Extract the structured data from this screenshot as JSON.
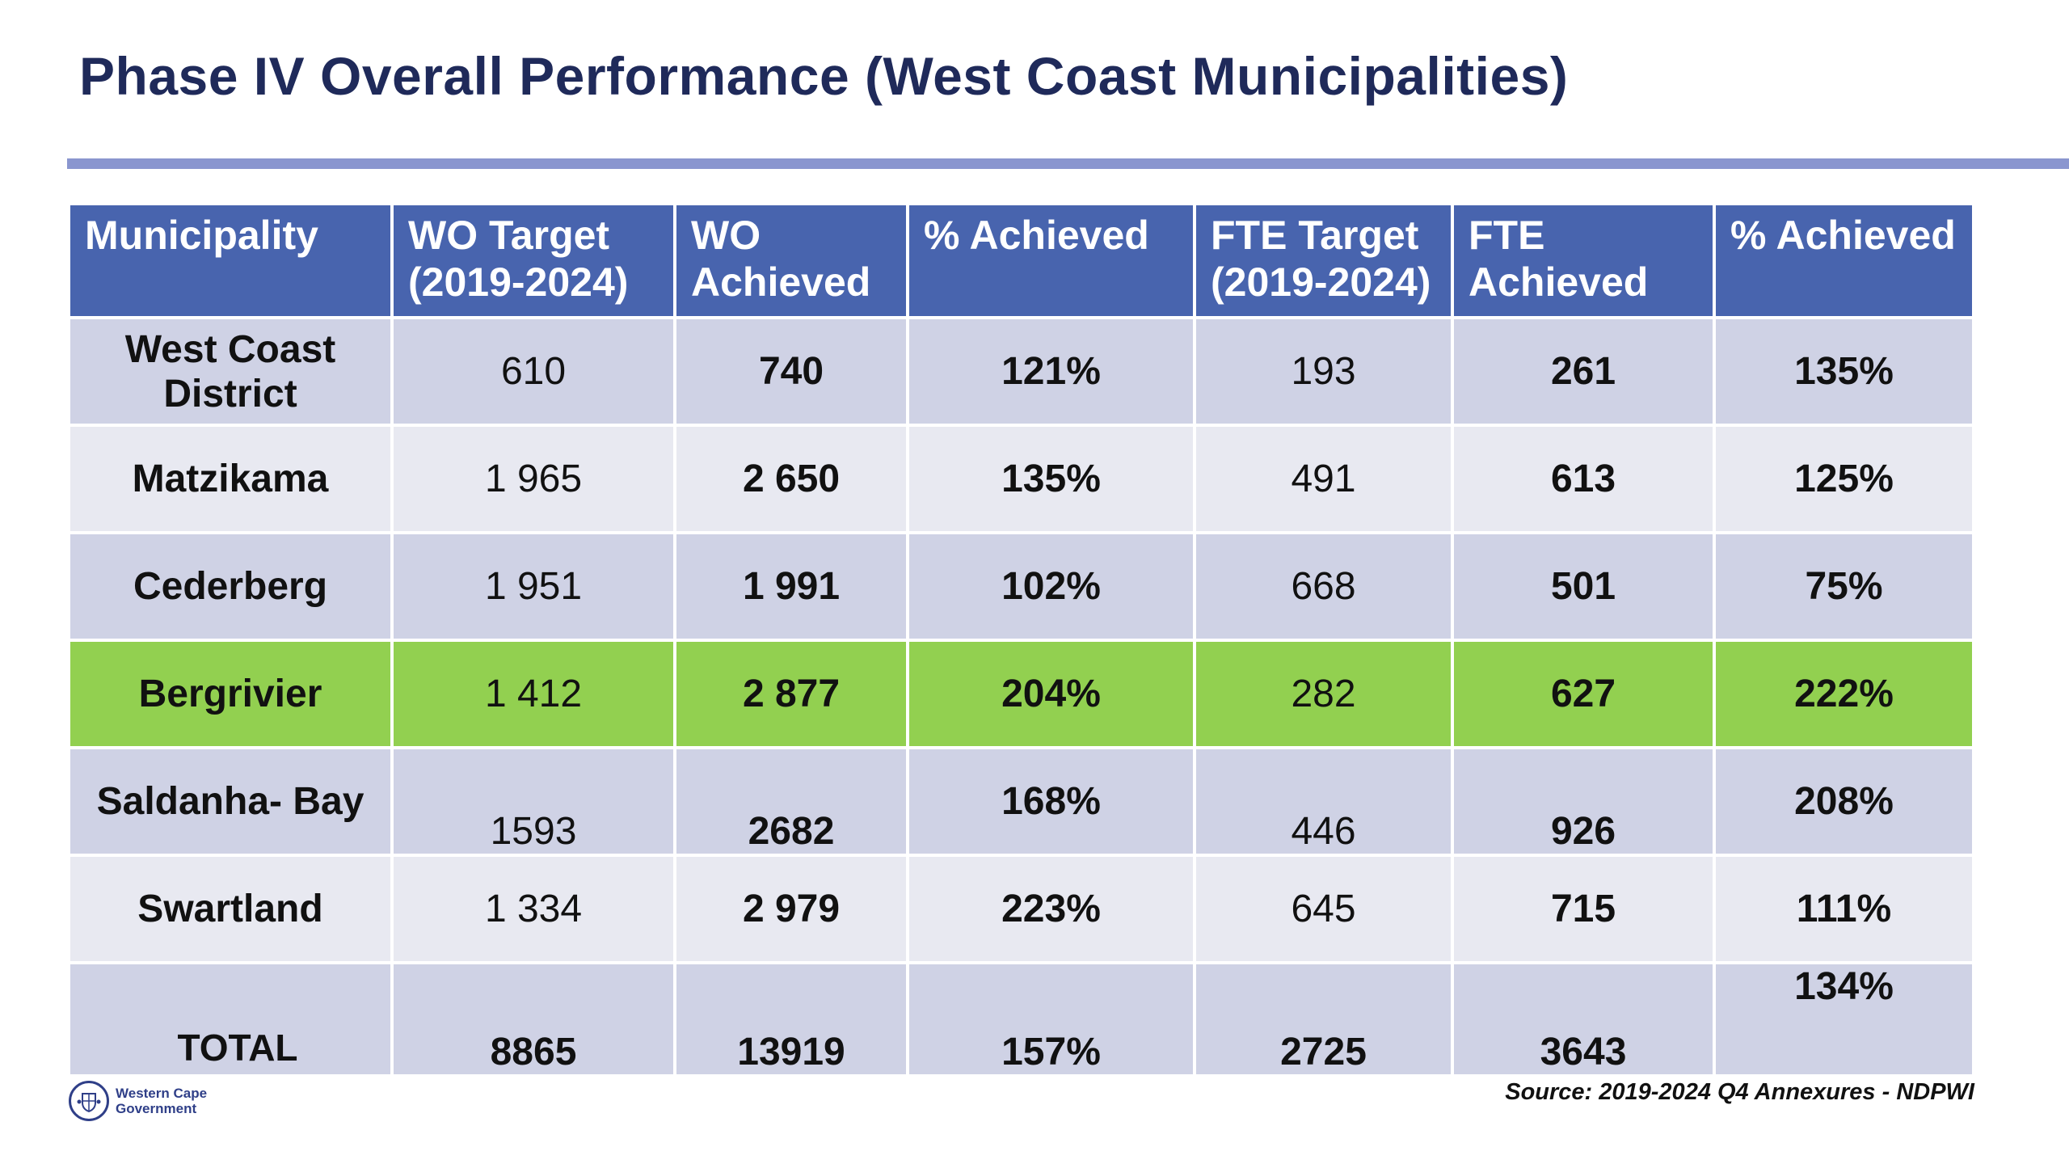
{
  "title": "Phase IV Overall Performance (West Coast Municipalities)",
  "table": {
    "headers": [
      "Municipality",
      "WO Target (2019-2024)",
      "WO Achieved",
      "% Achieved",
      "FTE Target (2019-2024)",
      "FTE Achieved",
      "% Achieved"
    ],
    "rows": [
      {
        "municipality": "West Coast District",
        "wo_target": "610",
        "wo_achieved": "740",
        "wo_pct": "121%",
        "fte_target": "193",
        "fte_achieved": "261",
        "fte_pct": "135%"
      },
      {
        "municipality": "Matzikama",
        "wo_target": "1 965",
        "wo_achieved": "2 650",
        "wo_pct": "135%",
        "fte_target": "491",
        "fte_achieved": "613",
        "fte_pct": "125%"
      },
      {
        "municipality": "Cederberg",
        "wo_target": "1 951",
        "wo_achieved": "1 991",
        "wo_pct": "102%",
        "fte_target": "668",
        "fte_achieved": "501",
        "fte_pct": "75%"
      },
      {
        "municipality": "Bergrivier",
        "wo_target": "1 412",
        "wo_achieved": "2 877",
        "wo_pct": "204%",
        "fte_target": "282",
        "fte_achieved": "627",
        "fte_pct": "222%",
        "highlighted": true
      },
      {
        "municipality": "Saldanha- Bay",
        "wo_target": "1593",
        "wo_achieved": "2682",
        "wo_pct": "168%",
        "fte_target": "446",
        "fte_achieved": "926",
        "fte_pct": "208%"
      },
      {
        "municipality": "Swartland",
        "wo_target": "1 334",
        "wo_achieved": "2 979",
        "wo_pct": "223%",
        "fte_target": "645",
        "fte_achieved": "715",
        "fte_pct": "111%"
      }
    ],
    "total": {
      "label": "TOTAL",
      "wo_target": "8865",
      "wo_achieved": "13919",
      "wo_pct": "157%",
      "fte_target": "2725",
      "fte_achieved": "3643",
      "fte_pct": "134%"
    }
  },
  "colors": {
    "header": "#4864ae",
    "highlight": "#92d050",
    "rule": "#8a96cf",
    "title": "#1f2a5a"
  },
  "footer": {
    "logo_line1": "Western Cape",
    "logo_line2": "Government",
    "logo_icon": "coat-of-arms-icon",
    "source": "Source: 2019-2024 Q4 Annexures - NDPWI"
  }
}
